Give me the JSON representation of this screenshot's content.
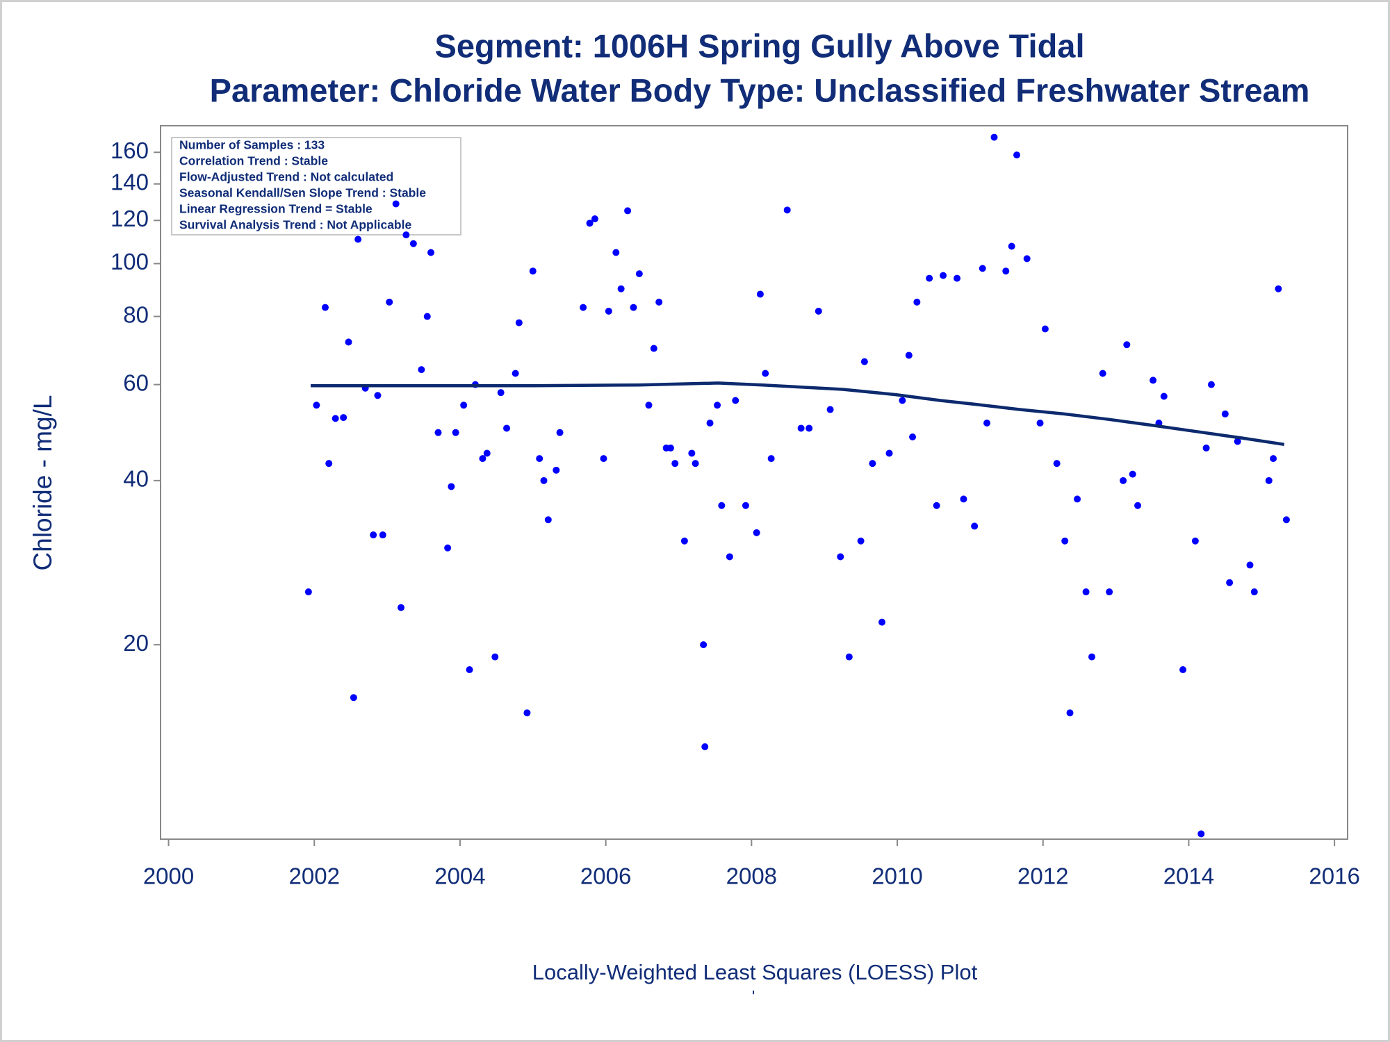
{
  "chart_data": {
    "type": "scatter",
    "title": "Segment: 1006H  Spring Gully Above Tidal",
    "subtitle": "Parameter: Chloride   Water Body Type: Unclassified Freshwater Stream",
    "ylabel": "Chloride - mg/L",
    "footnote": "Locally-Weighted Least Squares (LOESS) Plot",
    "footnote_mark": "'",
    "annotations": [
      "Number of Samples : 133",
      "Correlation Trend : Stable",
      "Flow-Adjusted Trend : Not calculated",
      "Seasonal Kendall/Sen Slope Trend : Stable",
      "Linear Regression Trend = Stable",
      "Survival Analysis Trend : Not Applicable"
    ],
    "ylog": true,
    "xlim": [
      1999.89,
      2016.18
    ],
    "xticks": [
      2000,
      2002,
      2004,
      2006,
      2008,
      2010,
      2012,
      2014,
      2016
    ],
    "ylim": [
      8.8,
      179
    ],
    "yticks": [
      20,
      40,
      60,
      80,
      100,
      120,
      140,
      160
    ],
    "series": [
      {
        "type": "scatter",
        "color": "#0000ff",
        "x": [
          2001.92,
          2002.03,
          2002.15,
          2002.2,
          2002.29,
          2002.4,
          2002.47,
          2002.54,
          2002.6,
          2002.7,
          2002.81,
          2002.87,
          2002.94,
          2003.03,
          2003.12,
          2003.19,
          2003.26,
          2003.36,
          2003.47,
          2003.55,
          2003.6,
          2003.7,
          2003.83,
          2003.88,
          2003.94,
          2004.05,
          2004.13,
          2004.21,
          2004.31,
          2004.37,
          2004.48,
          2004.56,
          2004.64,
          2004.76,
          2004.81,
          2004.92,
          2005.0,
          2005.09,
          2005.15,
          2005.21,
          2005.32,
          2005.37,
          2005.69,
          2005.78,
          2005.85,
          2005.97,
          2006.04,
          2006.14,
          2006.21,
          2006.3,
          2006.38,
          2006.46,
          2006.59,
          2006.66,
          2006.73,
          2006.83,
          2006.89,
          2006.95,
          2007.08,
          2007.18,
          2007.23,
          2007.34,
          2007.36,
          2007.43,
          2007.53,
          2007.59,
          2007.7,
          2007.78,
          2007.92,
          2008.07,
          2008.12,
          2008.19,
          2008.27,
          2008.49,
          2008.68,
          2008.79,
          2008.92,
          2009.08,
          2009.22,
          2009.34,
          2009.5,
          2009.55,
          2009.66,
          2009.79,
          2009.89,
          2010.07,
          2010.16,
          2010.21,
          2010.27,
          2010.44,
          2010.54,
          2010.63,
          2010.82,
          2010.91,
          2011.06,
          2011.17,
          2011.23,
          2011.33,
          2011.49,
          2011.57,
          2011.64,
          2011.78,
          2011.96,
          2012.03,
          2012.19,
          2012.3,
          2012.37,
          2012.47,
          2012.59,
          2012.67,
          2012.82,
          2012.91,
          2013.1,
          2013.15,
          2013.23,
          2013.3,
          2013.51,
          2013.59,
          2013.66,
          2013.92,
          2014.09,
          2014.17,
          2014.24,
          2014.31,
          2014.5,
          2014.56,
          2014.67,
          2014.84,
          2014.9,
          2015.1,
          2015.16,
          2015.23,
          2015.34
        ],
        "values": [
          25.0,
          55.0,
          83.1,
          43.0,
          52.0,
          52.2,
          71.8,
          16.0,
          110.8,
          59.1,
          31.8,
          57.3,
          31.8,
          85.0,
          128.7,
          23.4,
          112.9,
          108.8,
          63.9,
          80.0,
          104.8,
          49.0,
          30.1,
          39.0,
          49.0,
          55.0,
          18.0,
          60.0,
          43.9,
          44.9,
          19.0,
          58.0,
          49.9,
          62.9,
          77.9,
          15.0,
          96.9,
          43.9,
          40.0,
          33.9,
          41.8,
          49.0,
          83.1,
          118.6,
          120.8,
          43.9,
          81.8,
          104.8,
          89.9,
          125.0,
          83.1,
          95.8,
          55.0,
          69.9,
          85.0,
          45.9,
          45.9,
          43.0,
          31.0,
          44.9,
          43.0,
          20.0,
          13.0,
          51.0,
          55.0,
          36.0,
          29.0,
          56.1,
          36.0,
          32.1,
          87.9,
          62.9,
          43.9,
          125.4,
          49.9,
          49.9,
          81.8,
          54.0,
          29.0,
          19.0,
          31.0,
          66.1,
          43.0,
          22.0,
          44.9,
          56.1,
          67.9,
          48.1,
          85.0,
          94.0,
          36.0,
          95.1,
          94.0,
          37.0,
          33.0,
          98.0,
          51.0,
          170.5,
          96.9,
          107.6,
          158.2,
          102.1,
          51.0,
          75.9,
          43.0,
          31.0,
          15.0,
          37.0,
          25.0,
          19.0,
          62.9,
          25.0,
          40.0,
          71.0,
          41.1,
          36.0,
          61.1,
          51.0,
          57.1,
          18.0,
          31.0,
          9.0,
          45.9,
          60.0,
          53.0,
          26.0,
          47.2,
          28.0,
          25.0,
          40.0,
          43.9,
          89.9,
          33.9
        ]
      },
      {
        "type": "line",
        "color": "#0d2a6e",
        "x": [
          2001.95,
          2004.99,
          2006.45,
          2007.54,
          2008.15,
          2009.25,
          2009.98,
          2010.59,
          2011.07,
          2011.68,
          2012.29,
          2012.9,
          2013.51,
          2014.11,
          2014.72,
          2015.31
        ],
        "values": [
          59.7,
          59.7,
          59.9,
          60.4,
          59.9,
          58.8,
          57.5,
          56.1,
          55.2,
          54.0,
          53.0,
          51.8,
          50.5,
          49.2,
          47.9,
          46.6
        ]
      }
    ]
  }
}
